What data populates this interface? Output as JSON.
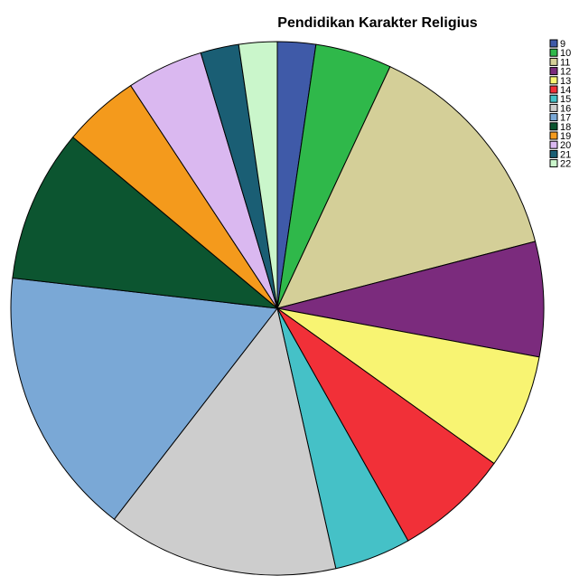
{
  "chart_data": {
    "type": "pie",
    "title": "Pendidikan Karakter Religius",
    "legend_position": "right",
    "categories": [
      "9",
      "10",
      "11",
      "12",
      "13",
      "14",
      "15",
      "16",
      "17",
      "18",
      "19",
      "20",
      "21",
      "22"
    ],
    "values": [
      2.4,
      4.8,
      14.5,
      7.2,
      7.2,
      7.2,
      4.8,
      14.5,
      16.9,
      9.6,
      4.8,
      4.8,
      2.4,
      2.4
    ],
    "colors": [
      "#3f5aa8",
      "#2fb84a",
      "#d4cf98",
      "#7b2b7d",
      "#f8f472",
      "#f13038",
      "#45c1c7",
      "#cdcdcd",
      "#7aa8d6",
      "#0c5530",
      "#f49a1c",
      "#dab8f0",
      "#1a5e74",
      "#caf6cb"
    ],
    "start_angle_deg": 0,
    "direction": "clockwise"
  }
}
